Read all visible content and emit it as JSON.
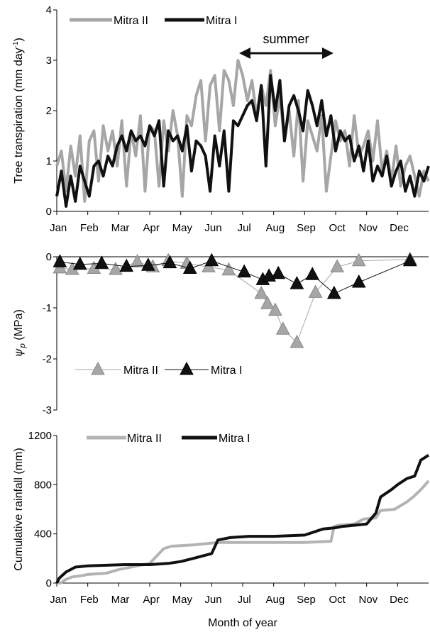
{
  "colors": {
    "mitra2": "#a6a6a6",
    "mitra1": "#111111"
  },
  "months": [
    "Jan",
    "Feb",
    "Mar",
    "Apr",
    "May",
    "Jun",
    "Jul",
    "Aug",
    "Sep",
    "Oct",
    "Nov",
    "Dec"
  ],
  "xlabel": "Month of year",
  "chart_data": [
    {
      "type": "line",
      "ylabel_main": "Tree transpiration (mm day",
      "ylabel_sup": "-1",
      "ylabel_close": ")",
      "ylim": [
        0,
        4
      ],
      "yticks": [
        "0",
        "1",
        "2",
        "3",
        "4"
      ],
      "annotation": "summer",
      "annotation_range_month": [
        6.6,
        9.4
      ],
      "series": [
        {
          "name": "Mitra II",
          "color": "#a6a6a6",
          "x": [
            0,
            0.15,
            0.3,
            0.45,
            0.6,
            0.75,
            0.9,
            1.05,
            1.2,
            1.35,
            1.5,
            1.65,
            1.8,
            1.95,
            2.1,
            2.25,
            2.4,
            2.55,
            2.7,
            2.85,
            3.0,
            3.15,
            3.3,
            3.45,
            3.6,
            3.75,
            3.9,
            4.05,
            4.2,
            4.35,
            4.5,
            4.65,
            4.8,
            4.95,
            5.1,
            5.25,
            5.4,
            5.55,
            5.7,
            5.85,
            6.0,
            6.15,
            6.3,
            6.45,
            6.6,
            6.75,
            6.9,
            7.05,
            7.2,
            7.35,
            7.5,
            7.65,
            7.8,
            7.95,
            8.1,
            8.25,
            8.4,
            8.55,
            8.7,
            8.85,
            9.0,
            9.15,
            9.3,
            9.45,
            9.6,
            9.75,
            9.9,
            10.05,
            10.2,
            10.35,
            10.5,
            10.65,
            10.8,
            10.95,
            11.1,
            11.25,
            11.4,
            11.55,
            11.7,
            11.85,
            12.0
          ],
          "values": [
            0.9,
            1.2,
            0.4,
            1.3,
            0.7,
            1.5,
            0.2,
            1.4,
            1.6,
            0.6,
            1.7,
            1.2,
            1.6,
            0.9,
            1.8,
            0.5,
            1.6,
            1.1,
            1.9,
            0.4,
            1.7,
            1.6,
            0.5,
            1.8,
            1.2,
            2.0,
            1.5,
            0.3,
            1.9,
            1.7,
            2.3,
            2.6,
            1.4,
            2.5,
            2.7,
            1.6,
            2.8,
            2.6,
            2.1,
            3.0,
            2.7,
            2.2,
            2.6,
            1.9,
            2.5,
            2.1,
            2.8,
            1.7,
            2.3,
            1.4,
            2.0,
            1.1,
            2.2,
            0.6,
            1.8,
            1.5,
            1.2,
            1.9,
            0.4,
            1.1,
            1.8,
            1.4,
            1.6,
            0.9,
            1.9,
            1.1,
            1.3,
            1.6,
            1.0,
            1.8,
            0.8,
            1.2,
            0.6,
            1.3,
            0.5,
            0.9,
            1.1,
            0.7,
            0.3,
            0.8,
            0.6
          ]
        },
        {
          "name": "Mitra I",
          "color": "#111111",
          "x": [
            0,
            0.15,
            0.3,
            0.45,
            0.6,
            0.75,
            0.9,
            1.05,
            1.2,
            1.35,
            1.5,
            1.65,
            1.8,
            1.95,
            2.1,
            2.25,
            2.4,
            2.55,
            2.7,
            2.85,
            3.0,
            3.15,
            3.3,
            3.45,
            3.6,
            3.75,
            3.9,
            4.05,
            4.2,
            4.35,
            4.5,
            4.65,
            4.8,
            4.95,
            5.1,
            5.25,
            5.4,
            5.55,
            5.7,
            5.85,
            6.0,
            6.15,
            6.3,
            6.45,
            6.6,
            6.75,
            6.9,
            7.05,
            7.2,
            7.35,
            7.5,
            7.65,
            7.8,
            7.95,
            8.1,
            8.25,
            8.4,
            8.55,
            8.7,
            8.85,
            9.0,
            9.15,
            9.3,
            9.45,
            9.6,
            9.75,
            9.9,
            10.05,
            10.2,
            10.35,
            10.5,
            10.65,
            10.8,
            10.95,
            11.1,
            11.25,
            11.4,
            11.55,
            11.7,
            11.85,
            12.0
          ],
          "values": [
            0.3,
            0.8,
            0.1,
            0.7,
            0.2,
            0.9,
            0.6,
            0.3,
            0.9,
            1.0,
            0.7,
            1.1,
            0.9,
            1.3,
            1.5,
            1.2,
            1.6,
            1.4,
            1.5,
            1.3,
            1.7,
            1.5,
            1.8,
            0.5,
            1.6,
            1.4,
            1.5,
            1.2,
            1.7,
            0.8,
            1.4,
            1.3,
            1.1,
            0.4,
            1.5,
            0.9,
            1.6,
            0.4,
            1.8,
            1.7,
            1.9,
            2.1,
            2.2,
            1.8,
            2.5,
            0.9,
            2.7,
            2.0,
            2.6,
            1.4,
            2.1,
            2.3,
            2.0,
            1.6,
            2.4,
            2.1,
            1.7,
            2.2,
            1.5,
            1.9,
            1.2,
            1.6,
            1.4,
            1.5,
            1.0,
            1.3,
            0.8,
            1.4,
            0.6,
            0.9,
            0.7,
            1.1,
            0.5,
            0.8,
            1.0,
            0.4,
            0.7,
            0.3,
            0.8,
            0.6,
            0.9
          ]
        }
      ]
    },
    {
      "type": "line",
      "ylabel_symbol": "ψ",
      "ylabel_sub": "p",
      "ylabel_unit": " (MPa)",
      "ylim": [
        -3,
        0
      ],
      "yticks": [
        "0",
        "-1",
        "-2",
        "-3"
      ],
      "series": [
        {
          "name": "Mitra II",
          "color": "#a6a6a6",
          "marker": "triangle",
          "x": [
            0.1,
            0.5,
            1.2,
            1.9,
            2.6,
            3.1,
            3.6,
            4.2,
            4.9,
            5.55,
            6.6,
            6.8,
            7.05,
            7.3,
            7.75,
            8.35,
            9.05,
            9.75,
            11.4
          ],
          "values": [
            -0.22,
            -0.25,
            -0.23,
            -0.25,
            -0.1,
            -0.2,
            -0.08,
            -0.13,
            -0.2,
            -0.26,
            -0.72,
            -0.92,
            -1.05,
            -1.42,
            -1.68,
            -0.7,
            -0.2,
            -0.08,
            -0.05
          ]
        },
        {
          "name": "Mitra I",
          "color": "#111111",
          "marker": "triangle",
          "x": [
            0.1,
            0.75,
            1.45,
            2.25,
            2.95,
            3.65,
            4.3,
            5.0,
            6.05,
            6.65,
            6.85,
            7.15,
            7.75,
            8.25,
            8.95,
            9.75,
            11.4
          ],
          "values": [
            -0.1,
            -0.15,
            -0.13,
            -0.19,
            -0.17,
            -0.12,
            -0.23,
            -0.08,
            -0.3,
            -0.45,
            -0.38,
            -0.33,
            -0.53,
            -0.35,
            -0.72,
            -0.5,
            -0.08
          ]
        }
      ]
    },
    {
      "type": "line",
      "ylabel": "Cumulative rainfall (mm)",
      "ylim": [
        0,
        1200
      ],
      "yticks": [
        "0",
        "400",
        "800",
        "1200"
      ],
      "series": [
        {
          "name": "Mitra II",
          "color": "#b3b3b3",
          "x": [
            0,
            0.12,
            0.3,
            0.5,
            0.8,
            1.0,
            1.6,
            2.0,
            3.0,
            3.45,
            3.7,
            4.4,
            4.8,
            5.2,
            5.5,
            6.0,
            7.0,
            8.0,
            8.85,
            8.95,
            9.1,
            9.6,
            9.9,
            10.3,
            10.45,
            10.9,
            11.3,
            11.5,
            11.75,
            12.0
          ],
          "values": [
            0,
            0,
            30,
            50,
            60,
            70,
            80,
            110,
            160,
            280,
            300,
            310,
            320,
            330,
            330,
            330,
            330,
            330,
            340,
            460,
            470,
            480,
            520,
            530,
            590,
            600,
            660,
            700,
            760,
            830
          ]
        },
        {
          "name": "Mitra I",
          "color": "#111111",
          "x": [
            0,
            0.08,
            0.3,
            0.6,
            1.0,
            1.6,
            2.2,
            3.0,
            3.6,
            4.0,
            4.4,
            5.0,
            5.2,
            5.6,
            6.2,
            7.0,
            8.0,
            8.6,
            9.0,
            9.2,
            10.0,
            10.3,
            10.45,
            10.8,
            11.0,
            11.3,
            11.55,
            11.75,
            12.0
          ],
          "values": [
            0,
            40,
            90,
            130,
            140,
            145,
            150,
            150,
            160,
            175,
            200,
            240,
            350,
            370,
            380,
            380,
            390,
            440,
            450,
            460,
            480,
            570,
            700,
            760,
            800,
            850,
            870,
            1000,
            1040
          ]
        }
      ]
    }
  ]
}
